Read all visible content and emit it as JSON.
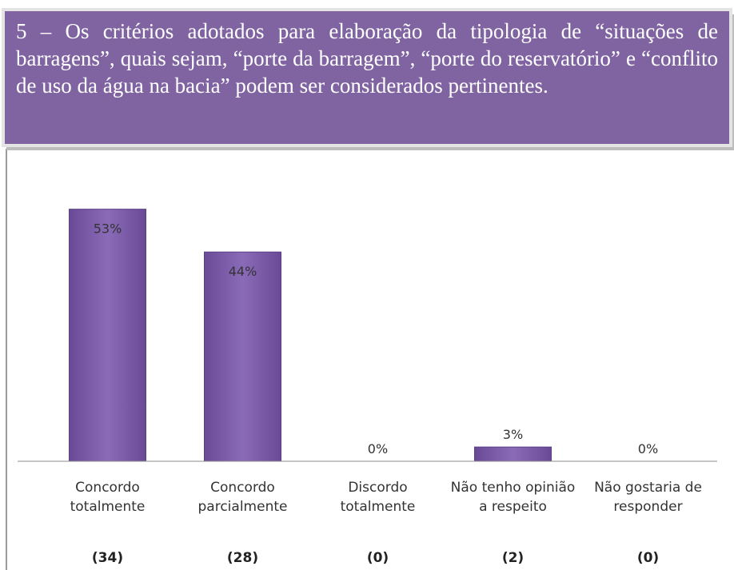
{
  "chart_data": {
    "type": "bar",
    "title": "5 – Os critérios adotados para elaboração da tipologia de “situações de barragens”, quais sejam, “porte da barragem”, “porte do reservatório” e “conflito de uso da água na bacia” podem ser considerados pertinentes.",
    "categories": [
      "Concordo totalmente",
      "Concordo parcialmente",
      "Discordo totalmente",
      "Não tenho opinião a respeito",
      "Não gostaria de responder"
    ],
    "values": [
      53,
      44,
      0,
      3,
      0
    ],
    "value_labels": [
      "53%",
      "44%",
      "0%",
      "3%",
      "0%"
    ],
    "count_labels": [
      "(34)",
      "(28)",
      "(0)",
      "(2)",
      "(0)"
    ],
    "color": "#7b5aa8",
    "ylim": [
      0,
      60
    ]
  }
}
